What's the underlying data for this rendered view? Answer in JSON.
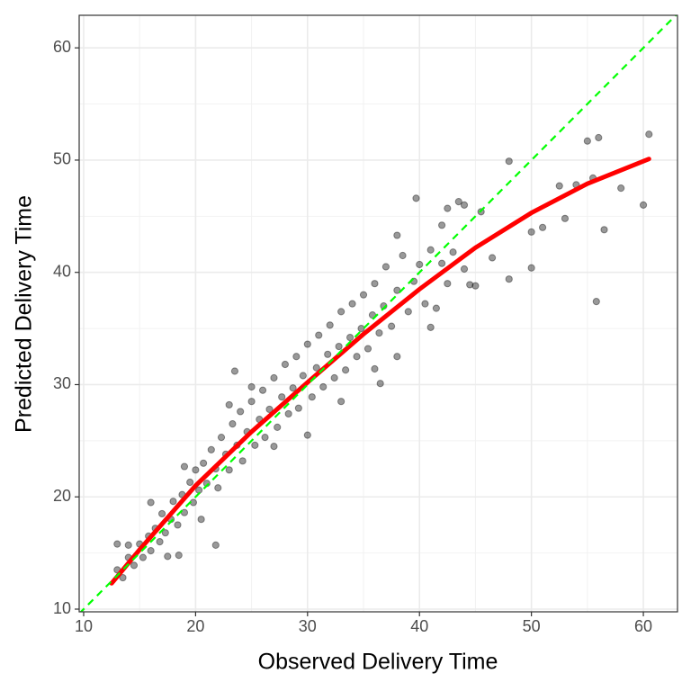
{
  "chart_data": {
    "type": "scatter",
    "xlabel": "Observed Delivery Time",
    "ylabel": "Predicted Delivery Time",
    "xlim": [
      9.6,
      63.05
    ],
    "ylim": [
      9.76,
      62.9
    ],
    "xticks": [
      10,
      20,
      30,
      40,
      50,
      60
    ],
    "yticks": [
      10,
      20,
      30,
      40,
      50,
      60
    ],
    "grid": true,
    "minor_grid": true,
    "series": [
      {
        "type": "scatter",
        "color": "#000000",
        "opacity": 0.4,
        "x": [
          13,
          13.5,
          14,
          14.5,
          15,
          15.3,
          15.8,
          16,
          16.4,
          16.8,
          17,
          17.3,
          17.8,
          18,
          18.4,
          18.8,
          19,
          19.5,
          19.8,
          20,
          20.3,
          20.7,
          21,
          21.4,
          21.8,
          22,
          22.3,
          22.7,
          23,
          23.3,
          23.7,
          24,
          24.2,
          24.6,
          25,
          25.3,
          25.7,
          26,
          26.2,
          26.6,
          27,
          27.3,
          27.7,
          28,
          28.3,
          28.7,
          29,
          29.2,
          29.6,
          30,
          30.4,
          30.8,
          31,
          31.4,
          31.8,
          32,
          32.4,
          32.8,
          33,
          33.4,
          33.8,
          34,
          34.4,
          34.8,
          35,
          35.4,
          35.8,
          36,
          36.4,
          36.8,
          37,
          37.5,
          38,
          38.5,
          39,
          39.5,
          40,
          40.5,
          41,
          41.5,
          42,
          42.5,
          43,
          44,
          23,
          27,
          30,
          33,
          25,
          19,
          16,
          14,
          20.5,
          38,
          36,
          48,
          52.5,
          55,
          56,
          60.5,
          60,
          56.5,
          55.8,
          50,
          39.7,
          43.5,
          44,
          42.5,
          45.5,
          46.5,
          48,
          50,
          51,
          53,
          54,
          58,
          55.5,
          21.8,
          23.5,
          13,
          18.5,
          17.5,
          38,
          42,
          41,
          44.5,
          45,
          36.5
        ],
        "values": [
          13.5,
          12.8,
          14.6,
          13.9,
          15.8,
          14.6,
          16.5,
          15.2,
          17.2,
          16,
          18.5,
          16.8,
          18,
          19.6,
          17.5,
          20.2,
          18.6,
          21.3,
          19.5,
          22.4,
          20.6,
          23,
          21.2,
          24.2,
          22.5,
          20.8,
          25.3,
          23.8,
          22.4,
          26.5,
          24.6,
          27.6,
          23.2,
          25.8,
          28.5,
          24.6,
          26.9,
          29.5,
          25.3,
          27.8,
          30.6,
          26.2,
          28.9,
          31.8,
          27.4,
          29.7,
          32.5,
          27.9,
          30.8,
          33.6,
          28.9,
          31.5,
          34.4,
          29.8,
          32.7,
          35.3,
          30.6,
          33.4,
          36.5,
          31.3,
          34.2,
          37.2,
          32.5,
          35,
          38,
          33.2,
          36.2,
          39,
          34.6,
          37,
          40.5,
          35.2,
          38.4,
          41.5,
          36.5,
          39.2,
          40.7,
          37.2,
          42,
          36.8,
          44.2,
          39,
          41.8,
          40.3,
          28.2,
          24.5,
          25.5,
          28.5,
          29.8,
          22.7,
          19.5,
          15.7,
          18,
          32.5,
          31.4,
          49.9,
          47.7,
          51.7,
          52,
          52.3,
          46,
          43.8,
          37.4,
          40.4,
          46.6,
          46.3,
          46,
          45.7,
          45.4,
          41.3,
          39.4,
          43.6,
          44,
          44.8,
          47.8,
          47.5,
          48.4,
          15.7,
          31.2,
          15.8,
          14.8,
          14.7,
          43.3,
          40.8,
          35.1,
          38.9,
          38.8,
          30.1
        ]
      },
      {
        "type": "line",
        "color": "#ff0000",
        "width": 5,
        "x": [
          12.5,
          15,
          20,
          25,
          30,
          35,
          40,
          45,
          50,
          55,
          60.5
        ],
        "values": [
          12.3,
          15.3,
          21,
          25.8,
          30.2,
          34.5,
          38.5,
          42.2,
          45.3,
          47.9,
          50.1
        ]
      },
      {
        "type": "line",
        "color": "#00ff00",
        "width": 2.2,
        "dashed": true,
        "x": [
          9.6,
          63.05
        ],
        "values": [
          9.6,
          63.05
        ]
      }
    ]
  }
}
